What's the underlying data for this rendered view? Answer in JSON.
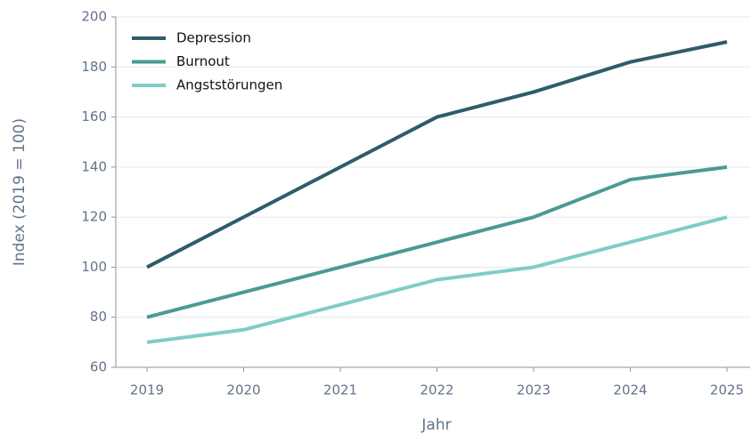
{
  "chart_data": {
    "type": "line",
    "x_label": "Jahr",
    "y_label": "Index (2019 = 100)",
    "categories": [
      "2019",
      "2020",
      "2021",
      "2022",
      "2023",
      "2024",
      "2025"
    ],
    "series": [
      {
        "name": "Depression",
        "color": "#2e5c6a",
        "values": [
          100,
          120,
          140,
          160,
          170,
          182,
          190
        ]
      },
      {
        "name": "Burnout",
        "color": "#4a9a96",
        "values": [
          80,
          90,
          100,
          110,
          120,
          135,
          140
        ]
      },
      {
        "name": "Angststörungen",
        "color": "#80ccc7",
        "values": [
          70,
          75,
          85,
          95,
          100,
          110,
          120
        ]
      }
    ],
    "ylim": [
      60,
      200
    ],
    "yticks": [
      60,
      80,
      100,
      120,
      140,
      160,
      180,
      200
    ],
    "grid": true,
    "legend": "upper left"
  }
}
